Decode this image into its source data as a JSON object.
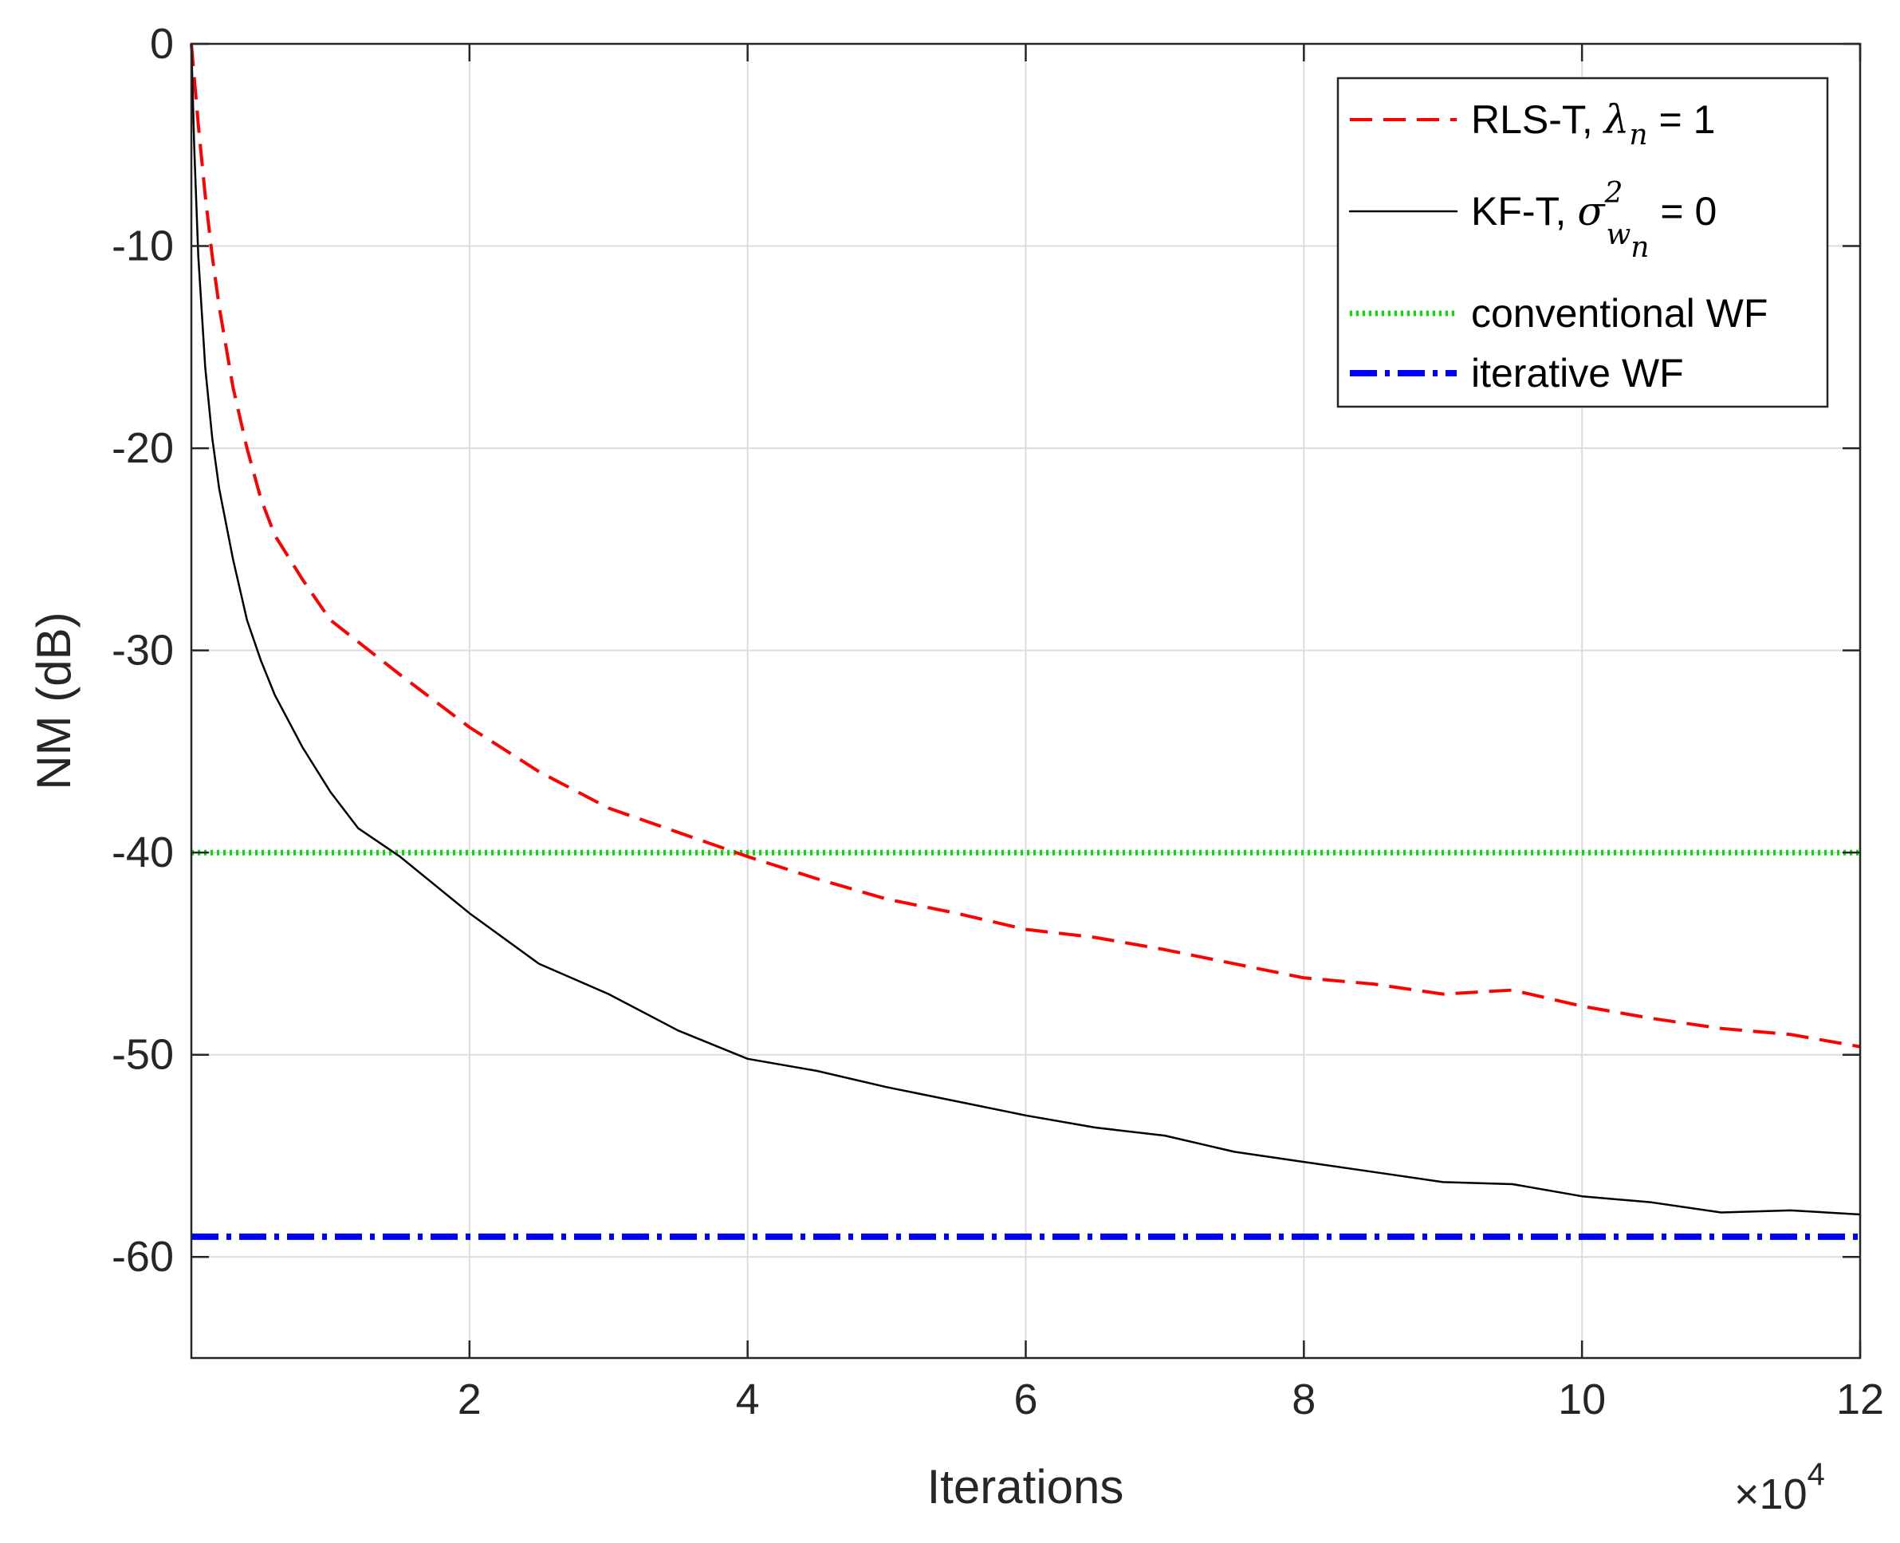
{
  "chart_data": {
    "type": "line",
    "title": "",
    "xlabel": "Iterations",
    "ylabel": "NM (dB)",
    "x_multiplier": "×10",
    "x_multiplier_exponent": "4",
    "xlim": [
      0,
      12
    ],
    "ylim": [
      -65,
      0
    ],
    "xticks": [
      2,
      4,
      6,
      8,
      10,
      12
    ],
    "xtick_labels": [
      "2",
      "4",
      "6",
      "8",
      "10",
      "12"
    ],
    "yticks": [
      0,
      -10,
      -20,
      -30,
      -40,
      -50,
      -60
    ],
    "ytick_labels": [
      "0",
      "-10",
      "-20",
      "-30",
      "-40",
      "-50",
      "-60"
    ],
    "grid": true,
    "legend_position": "top-right",
    "series": [
      {
        "name": "RLS-T, λn = 1",
        "legend": {
          "prefix": "RLS-T, ",
          "symbol": "λ",
          "sub": "n",
          "sup": "",
          "sub2": "",
          "suffix": " = 1"
        },
        "color": "#ff0000",
        "style": "dashed",
        "x": [
          0.0,
          0.05,
          0.1,
          0.15,
          0.2,
          0.3,
          0.4,
          0.5,
          0.6,
          0.8,
          1.0,
          1.5,
          2.0,
          2.5,
          3.0,
          3.5,
          4.0,
          4.5,
          5.0,
          5.5,
          6.0,
          6.5,
          7.0,
          7.5,
          8.0,
          8.5,
          9.0,
          9.5,
          10.0,
          10.5,
          11.0,
          11.5,
          12.0
        ],
        "y": [
          0.5,
          -4,
          -7.5,
          -10.5,
          -13,
          -17,
          -20,
          -22.5,
          -24.3,
          -26.5,
          -28.5,
          -31.2,
          -33.8,
          -36,
          -37.8,
          -39,
          -40.2,
          -41.3,
          -42.3,
          -43,
          -43.8,
          -44.2,
          -44.8,
          -45.5,
          -46.2,
          -46.5,
          -47,
          -46.8,
          -47.6,
          -48.2,
          -48.7,
          -49,
          -49.6
        ]
      },
      {
        "name": "KF-T, σ²wn = 0",
        "legend": {
          "prefix": "KF-T, ",
          "symbol": "σ",
          "sub": "w",
          "sup": "2",
          "sub2": "n",
          "suffix": " = 0"
        },
        "color": "#000000",
        "style": "solid",
        "x": [
          0.0,
          0.02,
          0.05,
          0.1,
          0.15,
          0.2,
          0.3,
          0.4,
          0.5,
          0.6,
          0.8,
          1.0,
          1.2,
          1.5,
          2.0,
          2.5,
          3.0,
          3.5,
          4.0,
          4.5,
          5.0,
          5.5,
          6.0,
          6.5,
          7.0,
          7.5,
          8.0,
          8.5,
          9.0,
          9.5,
          10.0,
          10.5,
          11.0,
          11.5,
          12.0
        ],
        "y": [
          0,
          -5,
          -10.5,
          -16,
          -19.5,
          -22,
          -25.5,
          -28.5,
          -30.5,
          -32.2,
          -34.8,
          -37,
          -38.8,
          -40.2,
          -43,
          -45.5,
          -47,
          -48.8,
          -50.2,
          -50.8,
          -51.6,
          -52.3,
          -53,
          -53.6,
          -54,
          -54.8,
          -55.3,
          -55.8,
          -56.3,
          -56.4,
          -57,
          -57.3,
          -57.8,
          -57.7,
          -57.9
        ]
      },
      {
        "name": "conventional WF",
        "legend": {
          "prefix": "conventional WF",
          "symbol": "",
          "sub": "",
          "sup": "",
          "sub2": "",
          "suffix": ""
        },
        "color": "#00e000",
        "style": "dotted",
        "x": [
          0,
          12
        ],
        "y": [
          -40,
          -40
        ]
      },
      {
        "name": "iterative WF",
        "legend": {
          "prefix": "iterative WF",
          "symbol": "",
          "sub": "",
          "sup": "",
          "sub2": "",
          "suffix": ""
        },
        "color": "#0000ff",
        "style": "dashdot",
        "x": [
          0,
          12
        ],
        "y": [
          -59,
          -59
        ]
      }
    ]
  }
}
